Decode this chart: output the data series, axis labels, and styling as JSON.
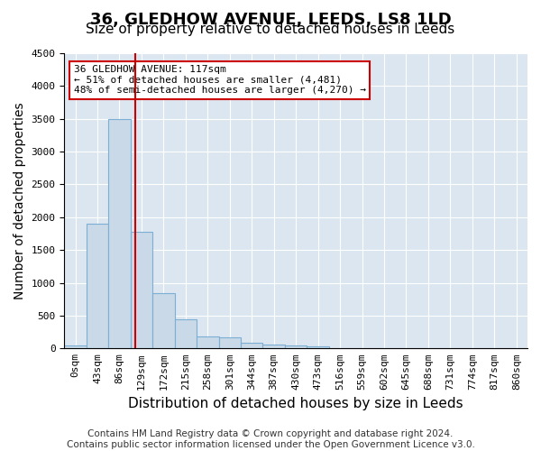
{
  "title": "36, GLEDHOW AVENUE, LEEDS, LS8 1LD",
  "subtitle": "Size of property relative to detached houses in Leeds",
  "xlabel": "Distribution of detached houses by size in Leeds",
  "ylabel": "Number of detached properties",
  "footer_line1": "Contains HM Land Registry data © Crown copyright and database right 2024.",
  "footer_line2": "Contains public sector information licensed under the Open Government Licence v3.0.",
  "bin_labels": [
    "0sqm",
    "43sqm",
    "86sqm",
    "129sqm",
    "172sqm",
    "215sqm",
    "258sqm",
    "301sqm",
    "344sqm",
    "387sqm",
    "430sqm",
    "473sqm",
    "516sqm",
    "559sqm",
    "602sqm",
    "645sqm",
    "688sqm",
    "731sqm",
    "774sqm",
    "817sqm",
    "860sqm"
  ],
  "bar_values": [
    40,
    1900,
    3500,
    1775,
    840,
    450,
    180,
    175,
    90,
    55,
    40,
    30,
    0,
    0,
    0,
    0,
    0,
    0,
    0,
    0,
    0
  ],
  "bar_color": "#c9d9e8",
  "bar_edge_color": "#7bafd4",
  "vline_x": 2.72,
  "vline_color": "#cc0000",
  "annotation_text": "36 GLEDHOW AVENUE: 117sqm\n← 51% of detached houses are smaller (4,481)\n48% of semi-detached houses are larger (4,270) →",
  "annotation_box_color": "#cc0000",
  "annotation_bg": "white",
  "ylim": [
    0,
    4500
  ],
  "yticks": [
    0,
    500,
    1000,
    1500,
    2000,
    2500,
    3000,
    3500,
    4000,
    4500
  ],
  "plot_bg_color": "#dce6f0",
  "title_fontsize": 13,
  "subtitle_fontsize": 11,
  "axis_label_fontsize": 10,
  "tick_fontsize": 8,
  "footer_fontsize": 7.5
}
